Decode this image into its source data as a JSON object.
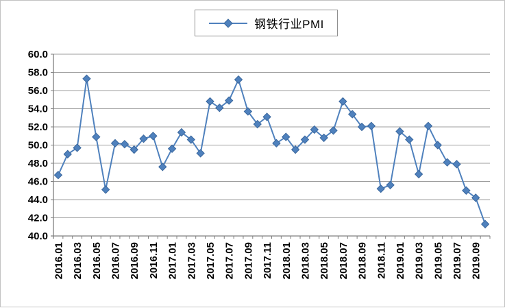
{
  "chart_data": {
    "type": "line",
    "title": "",
    "legend": {
      "position": "top",
      "entries": [
        "钢铁行业PMI"
      ]
    },
    "categories": [
      "2016.01",
      "2016.02",
      "2016.03",
      "2016.04",
      "2016.05",
      "2016.06",
      "2016.07",
      "2016.08",
      "2016.09",
      "2016.10",
      "2016.11",
      "2016.12",
      "2017.01",
      "2017.02",
      "2017.03",
      "2017.04",
      "2017.05",
      "2017.06",
      "2017.07",
      "2017.08",
      "2017.09",
      "2017.10",
      "2017.11",
      "2017.12",
      "2018.01",
      "2018.02",
      "2018.03",
      "2018.04",
      "2018.05",
      "2018.06",
      "2018.07",
      "2018.08",
      "2018.09",
      "2018.10",
      "2018.11",
      "2018.12",
      "2019.01",
      "2019.02",
      "2019.03",
      "2019.04",
      "2019.05",
      "2019.06",
      "2019.07",
      "2019.08",
      "2019.09",
      "2019.10"
    ],
    "series": [
      {
        "name": "钢铁行业PMI",
        "color": "#4F81BD",
        "marker": "diamond",
        "marker_border_color": "#3A679D",
        "values": [
          46.7,
          49.0,
          49.7,
          57.3,
          50.9,
          45.1,
          50.2,
          50.1,
          49.5,
          50.7,
          51.0,
          47.6,
          49.6,
          51.4,
          50.6,
          49.1,
          54.8,
          54.1,
          54.9,
          57.2,
          53.7,
          52.3,
          53.1,
          50.2,
          50.9,
          49.5,
          50.6,
          51.7,
          50.8,
          51.6,
          54.8,
          53.4,
          52.0,
          52.1,
          45.2,
          45.6,
          51.5,
          50.6,
          46.8,
          52.1,
          50.0,
          48.1,
          47.9,
          45.0,
          44.2,
          41.3
        ]
      }
    ],
    "xlabel": "",
    "ylabel": "",
    "ylim": [
      40,
      60
    ],
    "y_tick_step": 2,
    "y_tick_labels": [
      "40.0",
      "42.0",
      "44.0",
      "46.0",
      "48.0",
      "50.0",
      "52.0",
      "54.0",
      "56.0",
      "58.0",
      "60.0"
    ],
    "x_tick_label_every": 2,
    "x_tick_label_rotation": -90,
    "grid": true,
    "gridline_color": "#9C9C9C",
    "axis_color": "#7F7F7F",
    "text_color": "#000000",
    "background": "#FFFFFF"
  }
}
